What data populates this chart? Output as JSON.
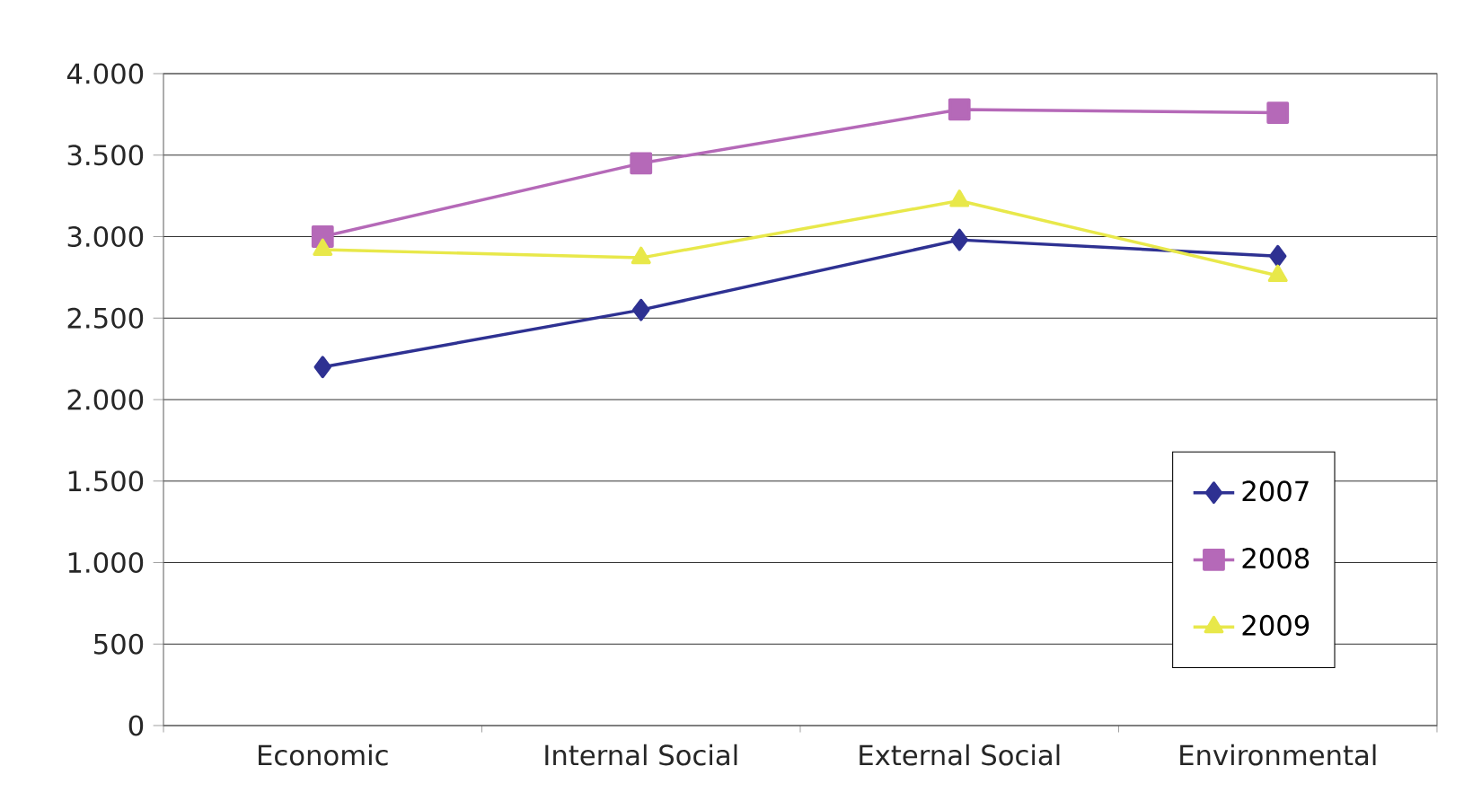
{
  "chart_data": {
    "type": "line",
    "categories": [
      "Economic",
      "Internal Social",
      "External Social",
      "Environmental"
    ],
    "series": [
      {
        "name": "2007",
        "color": "#2e3192",
        "marker": "diamond",
        "values": [
          2200,
          2550,
          2980,
          2880
        ]
      },
      {
        "name": "2008",
        "color": "#b569b8",
        "marker": "square",
        "values": [
          3000,
          3450,
          3780,
          3760
        ]
      },
      {
        "name": "2009",
        "color": "#e8e84a",
        "marker": "triangle",
        "values": [
          2920,
          2870,
          3220,
          2760
        ]
      }
    ],
    "ylim": [
      0,
      4000
    ],
    "yticks": [
      {
        "value": 0,
        "label": "0"
      },
      {
        "value": 500,
        "label": "500"
      },
      {
        "value": 1000,
        "label": "1.000"
      },
      {
        "value": 1500,
        "label": "1.500"
      },
      {
        "value": 2000,
        "label": "2.000"
      },
      {
        "value": 2500,
        "label": "2.500"
      },
      {
        "value": 3000,
        "label": "3.000"
      },
      {
        "value": 3500,
        "label": "3.500"
      },
      {
        "value": 4000,
        "label": "4.000"
      }
    ],
    "grid": "y",
    "legend": "bottom right",
    "line_style": "solid"
  }
}
